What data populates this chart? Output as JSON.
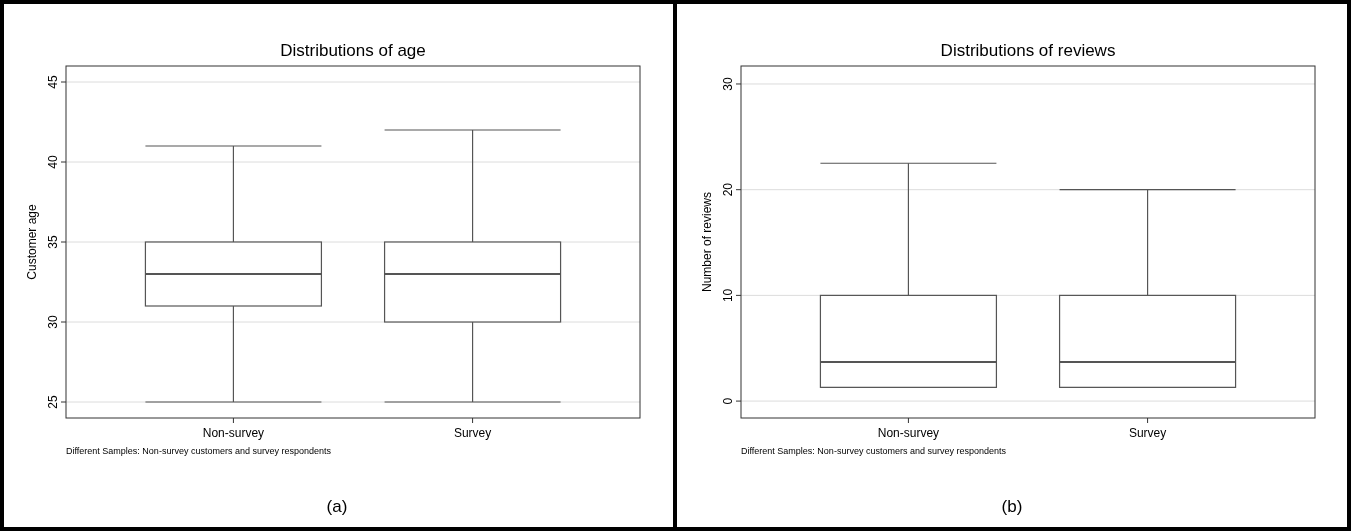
{
  "chart_data": [
    {
      "type": "box",
      "title": "Distributions of age",
      "ylabel": "Customer age",
      "categories": [
        "Non-survey",
        "Survey"
      ],
      "boxes": [
        {
          "low": 25,
          "q1": 31,
          "median": 33,
          "q3": 35,
          "high": 41
        },
        {
          "low": 25,
          "q1": 30,
          "median": 33,
          "q3": 35,
          "high": 42
        }
      ],
      "color": "#555555",
      "ylim": [
        24,
        46
      ],
      "yticks": [
        25,
        30,
        35,
        40,
        45
      ],
      "grid": "y",
      "annotations": [
        "Different Samples: Non-survey customers and survey respondents",
        "(a)"
      ]
    },
    {
      "type": "box",
      "title": "Distributions of reviews",
      "ylabel": "Number of reviews",
      "categories": [
        "Non-survey",
        "Survey"
      ],
      "boxes": [
        {
          "low": 1.3,
          "q1": 1.3,
          "median": 3.7,
          "q3": 10,
          "high": 22.5
        },
        {
          "low": 1.3,
          "q1": 1.3,
          "median": 3.7,
          "q3": 10,
          "high": 20
        }
      ],
      "color": "#555555",
      "ylim": [
        -1.6,
        31.7
      ],
      "yticks": [
        0,
        10,
        20,
        30
      ],
      "grid": "y",
      "annotations": [
        "Different Samples: Non-survey customers and survey respondents",
        "(b)"
      ]
    }
  ]
}
